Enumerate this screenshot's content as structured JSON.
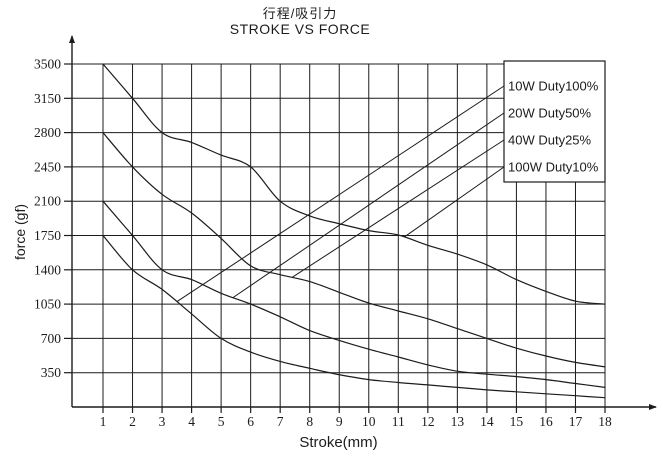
{
  "page": {
    "background": "#ffffff"
  },
  "chart_data": {
    "type": "line",
    "title_cjk": "行程/吸引力",
    "title": "STROKE VS FORCE",
    "xlabel": "Stroke(mm)",
    "ylabel": "force (gf)",
    "x": [
      1,
      2,
      3,
      4,
      5,
      6,
      7,
      8,
      9,
      10,
      11,
      12,
      13,
      14,
      15,
      16,
      17,
      18
    ],
    "x_ticks": [
      1,
      2,
      3,
      4,
      5,
      6,
      7,
      8,
      9,
      10,
      11,
      12,
      13,
      14,
      15,
      16,
      17,
      18
    ],
    "y_ticks": [
      350,
      700,
      1050,
      1400,
      1750,
      2100,
      2450,
      2800,
      3150,
      3500
    ],
    "xlim": [
      1,
      18
    ],
    "ylim": [
      0,
      3500
    ],
    "grid": true,
    "line_color": "#1c1c1c",
    "background_color": "#ffffff",
    "legend": {
      "position": "top-right",
      "entries": [
        "10W Duty100%",
        "20W Duty50%",
        "40W Duty25%",
        "100W Duty10%"
      ]
    },
    "series": [
      {
        "name": "100W Duty10%",
        "legend_index": 3,
        "leader_attach_stroke": 11.2,
        "values": [
          3500,
          3150,
          2800,
          2700,
          2570,
          2450,
          2100,
          1950,
          1870,
          1800,
          1755,
          1650,
          1560,
          1450,
          1300,
          1180,
          1080,
          1050
        ]
      },
      {
        "name": "40W Duty25%",
        "legend_index": 2,
        "leader_attach_stroke": 7.4,
        "values": [
          2800,
          2450,
          2170,
          1980,
          1720,
          1440,
          1350,
          1280,
          1170,
          1060,
          980,
          900,
          800,
          700,
          600,
          520,
          455,
          410
        ]
      },
      {
        "name": "20W Duty50%",
        "legend_index": 1,
        "leader_attach_stroke": 5.4,
        "values": [
          2100,
          1750,
          1400,
          1300,
          1160,
          1050,
          920,
          780,
          680,
          590,
          510,
          430,
          365,
          335,
          310,
          280,
          240,
          200
        ]
      },
      {
        "name": "10W Duty100%",
        "legend_index": 0,
        "leader_attach_stroke": 3.5,
        "values": [
          1750,
          1400,
          1200,
          950,
          700,
          560,
          465,
          395,
          330,
          280,
          250,
          225,
          200,
          175,
          155,
          135,
          115,
          95
        ]
      }
    ]
  }
}
